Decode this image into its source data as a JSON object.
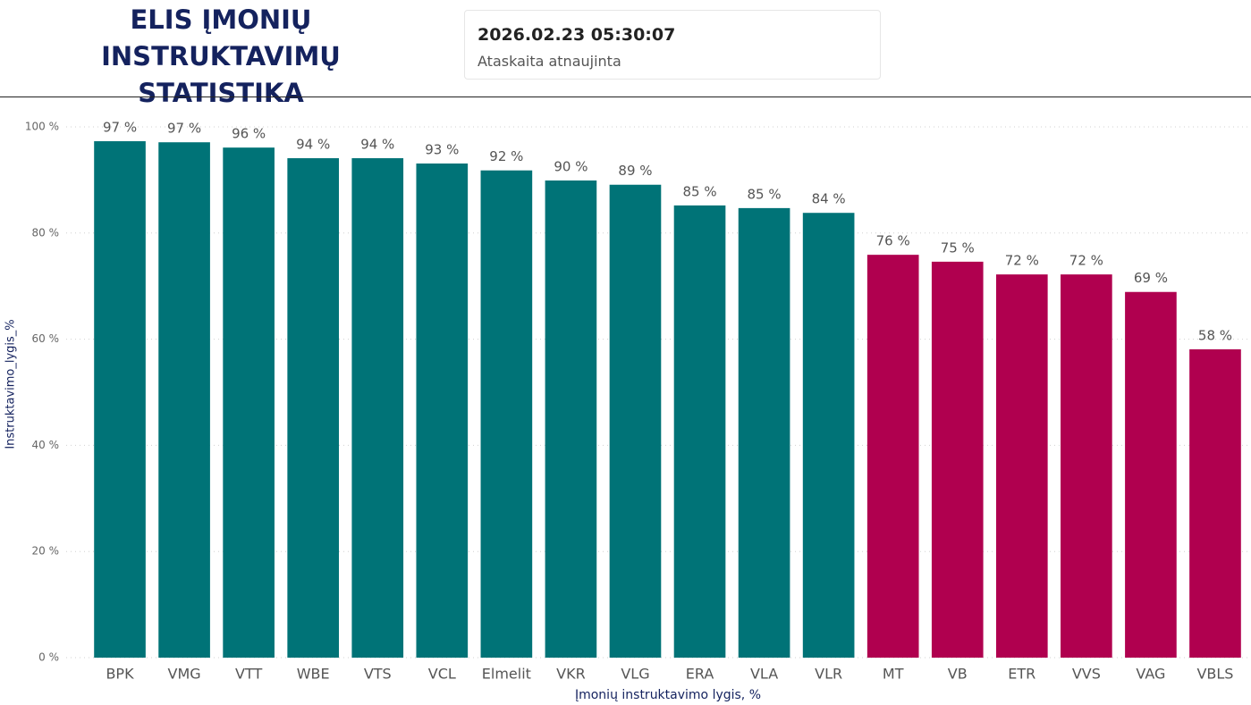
{
  "header": {
    "title": "ELIS ĮMONIŲ INSTRUKTAVIMŲ STATISTIKA",
    "timestamp": "2026.02.23 05:30:07",
    "timestamp_label": "Ataskaita atnaujinta"
  },
  "chart_data": {
    "type": "bar",
    "categories": [
      "BPK",
      "VMG",
      "VTT",
      "WBE",
      "VTS",
      "VCL",
      "Elmelit",
      "VKR",
      "VLG",
      "ERA",
      "VLA",
      "VLR",
      "MT",
      "VB",
      "ETR",
      "VVS",
      "VAG",
      "VBLS"
    ],
    "values": [
      97.3,
      97.1,
      96.1,
      94.1,
      94.1,
      93.1,
      91.8,
      89.9,
      89.1,
      85.2,
      84.7,
      83.8,
      75.9,
      74.6,
      72.2,
      72.2,
      68.9,
      58.1
    ],
    "value_labels": [
      "97 %",
      "97 %",
      "96 %",
      "94 %",
      "94 %",
      "93 %",
      "92 %",
      "90 %",
      "89 %",
      "85 %",
      "85 %",
      "84 %",
      "76 %",
      "75 %",
      "72 %",
      "72 %",
      "69 %",
      "58 %"
    ],
    "colors": [
      "#007377",
      "#007377",
      "#007377",
      "#007377",
      "#007377",
      "#007377",
      "#007377",
      "#007377",
      "#007377",
      "#007377",
      "#007377",
      "#007377",
      "#b0004f",
      "#b0004f",
      "#b0004f",
      "#b0004f",
      "#b0004f",
      "#b0004f"
    ],
    "ylim": [
      0,
      100
    ],
    "yticks": [
      {
        "value": 0,
        "label": "0 %"
      },
      {
        "value": 20,
        "label": "20 %"
      },
      {
        "value": 40,
        "label": "40 %"
      },
      {
        "value": 60,
        "label": "60 %"
      },
      {
        "value": 80,
        "label": "80 %"
      },
      {
        "value": 100,
        "label": "100 %"
      }
    ],
    "y_label": "Instruktavimo_lygis_%",
    "x_label": "Įmonių instruktavimo lygis, %",
    "grid": true
  }
}
